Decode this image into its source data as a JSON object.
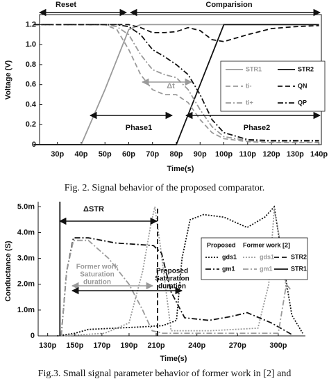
{
  "chart_data": [
    {
      "type": "line",
      "xlabel": "Time(s)",
      "ylabel": "Voltage (V)",
      "caption": "Fig. 2. Signal behavior of the proposed comparator.",
      "x": [
        20,
        30,
        40,
        50,
        55,
        60,
        65,
        70,
        75,
        80,
        85,
        90,
        95,
        100,
        110,
        120,
        130,
        140
      ],
      "xlim": [
        22.5,
        141
      ],
      "xticks": [
        {
          "value": 30,
          "label": "30p"
        },
        {
          "value": 40,
          "label": "40p"
        },
        {
          "value": 50,
          "label": "50p"
        },
        {
          "value": 60,
          "label": "60p"
        },
        {
          "value": 70,
          "label": "70p"
        },
        {
          "value": 80,
          "label": "80p"
        },
        {
          "value": 90,
          "label": "90p"
        },
        {
          "value": 100,
          "label": "100p"
        },
        {
          "value": 110,
          "label": "110p"
        },
        {
          "value": 120,
          "label": "120p"
        },
        {
          "value": 130,
          "label": "130p"
        },
        {
          "value": 140,
          "label": "140p"
        }
      ],
      "ylim": [
        0,
        1.3
      ],
      "yticks": [
        0,
        0.2,
        0.4,
        0.6,
        0.8,
        {
          "value": 1,
          "label": "1.0"
        },
        1.2
      ],
      "legend_position": "right",
      "series": [
        {
          "name": "STR1",
          "color": "#9a9a9a",
          "style": "solid",
          "values": [
            0,
            0,
            0,
            0.55,
            0.85,
            1.15,
            1.2,
            1.2,
            1.2,
            1.2,
            1.2,
            1.2,
            1.2,
            1.2,
            1.2,
            1.2,
            1.2,
            1.2
          ]
        },
        {
          "name": "STR2",
          "color": "#111111",
          "style": "solid",
          "values": [
            0,
            0,
            0,
            0,
            0,
            0,
            0,
            0,
            0,
            0,
            0.3,
            0.6,
            0.9,
            1.2,
            1.2,
            1.2,
            1.2,
            1.2
          ]
        },
        {
          "name": "ti-",
          "color": "#9a9a9a",
          "style": "dashed",
          "values": [
            1.2,
            1.2,
            1.2,
            1.2,
            1.15,
            0.95,
            0.7,
            0.55,
            0.5,
            0.5,
            0.42,
            0.25,
            0.12,
            0.06,
            0.03,
            0.02,
            0.02,
            0.02
          ]
        },
        {
          "name": "QN",
          "color": "#111111",
          "style": "dashed",
          "values": [
            1.2,
            1.2,
            1.2,
            1.2,
            1.2,
            1.2,
            1.17,
            1.12,
            1.12,
            1.13,
            1.17,
            1.14,
            1.05,
            1.03,
            1.1,
            1.16,
            1.18,
            1.19
          ]
        },
        {
          "name": "ti+",
          "color": "#9a9a9a",
          "style": "dashdot",
          "values": [
            1.2,
            1.2,
            1.2,
            1.2,
            1.18,
            1.1,
            0.9,
            0.75,
            0.7,
            0.67,
            0.55,
            0.35,
            0.18,
            0.08,
            0.04,
            0.03,
            0.03,
            0.03
          ]
        },
        {
          "name": "QP",
          "color": "#111111",
          "style": "dashdot",
          "values": [
            1.2,
            1.2,
            1.2,
            1.2,
            1.2,
            1.18,
            1.1,
            0.95,
            0.88,
            0.8,
            0.7,
            0.5,
            0.25,
            0.12,
            0.05,
            0.04,
            0.04,
            0.04
          ]
        }
      ],
      "annotations": [
        "Reset",
        "Comparision",
        "Phase1",
        "Phase2",
        "Δt"
      ]
    },
    {
      "type": "line",
      "xlabel": "Time(s)",
      "ylabel": "Conductance (S)",
      "caption": "Fig.3. Small signal parameter behavior of former work in [2] and",
      "xlim": [
        123,
        320
      ],
      "xticks": [
        {
          "value": 130,
          "label": "130p"
        },
        {
          "value": 150,
          "label": "150p"
        },
        {
          "value": 170,
          "label": "170p"
        },
        {
          "value": 190,
          "label": "190p"
        },
        {
          "value": 210,
          "label": "210p"
        },
        {
          "value": 240,
          "label": "240p"
        },
        {
          "value": 270,
          "label": "270p"
        },
        {
          "value": 300,
          "label": "300p"
        }
      ],
      "ylim": [
        0,
        0.0052
      ],
      "yticks": [
        0,
        {
          "value": 0.001,
          "label": "1.0m"
        },
        {
          "value": 0.002,
          "label": "2.0m"
        },
        {
          "value": 0.003,
          "label": "3.0m"
        },
        {
          "value": 0.004,
          "label": "4.0m"
        },
        {
          "value": 0.005,
          "label": "5.0m"
        }
      ],
      "legend_position": "right",
      "legend_headings": [
        "Proposed",
        "Former work [2]"
      ],
      "series": [
        {
          "name": "gds1",
          "color": "#111111",
          "style": "dotted",
          "x": [
            137,
            150,
            160,
            180,
            200,
            215,
            225,
            229,
            235,
            245,
            260,
            277,
            290,
            297,
            303,
            310,
            318
          ],
          "values": [
            0,
            0.0001,
            0.00025,
            0.0003,
            0.00035,
            0.0004,
            0.0006,
            0.003,
            0.0045,
            0.0047,
            0.0046,
            0.0042,
            0.0046,
            0.005,
            0.003,
            0.0008,
            0.0001
          ]
        },
        {
          "name": "gds1",
          "color": "#9a9a9a",
          "style": "dotted",
          "x": [
            140,
            172,
            190,
            200,
            206,
            209,
            213,
            221,
            250,
            285,
            293,
            297,
            302,
            306
          ],
          "values": [
            0,
            0.0001,
            0.0005,
            0.0025,
            0.0043,
            0.005,
            0.0035,
            0.0002,
            0.0002,
            0.0003,
            0.002,
            0.0049,
            0.0035,
            0.0018
          ]
        },
        {
          "name": "STR2",
          "color": "#111111",
          "style": "dashed",
          "x": [
            211,
            211
          ],
          "values": [
            0,
            0.005
          ]
        },
        {
          "name": "gm1",
          "color": "#111111",
          "style": "dashdot",
          "x": [
            140,
            144,
            149,
            160,
            180,
            208,
            214,
            221,
            231,
            249,
            265,
            277,
            295,
            310
          ],
          "values": [
            0,
            0.0025,
            0.0038,
            0.0038,
            0.0036,
            0.0035,
            0.0032,
            0.0017,
            0.0007,
            0.0006,
            0.00075,
            0.0009,
            0.0005,
            5e-05
          ]
        },
        {
          "name": "gm1",
          "color": "#9a9a9a",
          "style": "dashdot",
          "x": [
            140,
            144,
            149,
            160,
            175,
            190,
            200,
            207,
            215,
            250,
            300,
            306,
            309
          ],
          "values": [
            0,
            0.0025,
            0.0037,
            0.0037,
            0.003,
            0.002,
            0.001,
            0.0002,
            0.0001,
            0.0001,
            0.0001,
            0.002,
            0.0018
          ]
        },
        {
          "name": "STR1",
          "color": "#111111",
          "style": "solid",
          "x": [
            139,
            139
          ],
          "values": [
            0,
            0.0052
          ]
        }
      ],
      "annotations": [
        "ΔSTR",
        [
          "Former work",
          "Saturation",
          "duration"
        ],
        [
          "Proposed",
          "Saturation",
          "duration"
        ]
      ]
    }
  ]
}
